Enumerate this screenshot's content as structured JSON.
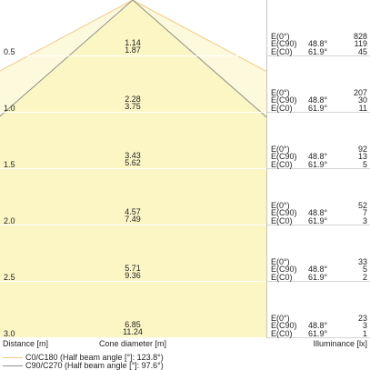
{
  "distance_rows": [
    {
      "distance": "0.5",
      "diameter_c90": "1.14",
      "diameter_c0": "1.87",
      "e0": "828",
      "ec90": "119",
      "ec0": "45"
    },
    {
      "distance": "1.0",
      "diameter_c90": "2.28",
      "diameter_c0": "3.75",
      "e0": "207",
      "ec90": "30",
      "ec0": "11"
    },
    {
      "distance": "1.5",
      "diameter_c90": "3.43",
      "diameter_c0": "5.62",
      "e0": "92",
      "ec90": "13",
      "ec0": "5"
    },
    {
      "distance": "2.0",
      "diameter_c90": "4.57",
      "diameter_c0": "7.49",
      "e0": "52",
      "ec90": "7",
      "ec0": "3"
    },
    {
      "distance": "2.5",
      "diameter_c90": "5.71",
      "diameter_c0": "9.36",
      "e0": "33",
      "ec90": "5",
      "ec0": "2"
    },
    {
      "distance": "3.0",
      "diameter_c90": "6.85",
      "diameter_c0": "11.24",
      "e0": "23",
      "ec90": "3",
      "ec0": "1"
    }
  ],
  "illuminance_labels": {
    "e0": "E(0°)",
    "ec90": "E(C90)",
    "ec0": "E(C0)",
    "c90_angle": "48.8°",
    "c0_angle": "61.9°"
  },
  "axis_labels": {
    "distance": "Distance [m]",
    "cone_diameter": "Cone diameter [m]",
    "illuminance": "Illuminance [lx]"
  },
  "legend": [
    {
      "label": "C0/C180 (Half beam angle [°]: 123.8°)",
      "color": "#f0cc86"
    },
    {
      "label": "C90/C270 (Half beam angle [°]: 97.6°)",
      "color": "#8f8f88"
    }
  ],
  "cone_fill_colors": {
    "c0": "#fdf9dc",
    "c90": "#fbf6c4"
  }
}
